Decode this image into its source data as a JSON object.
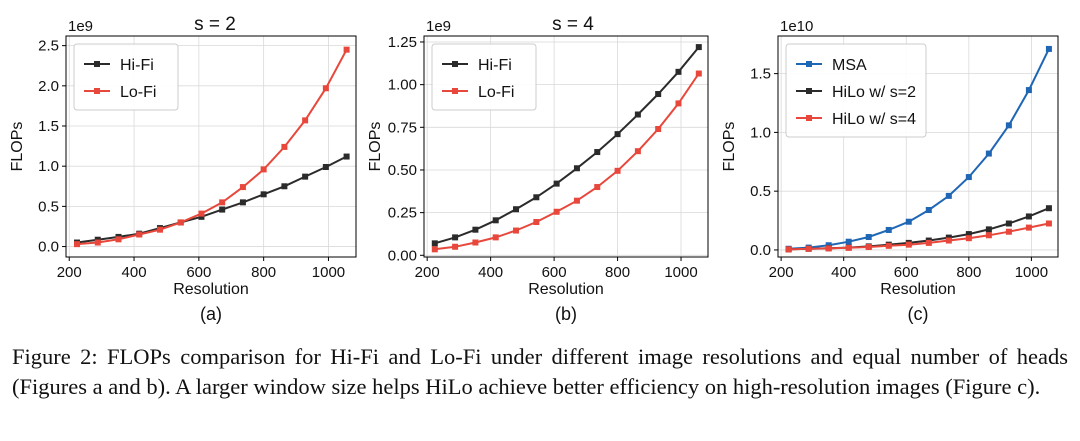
{
  "chart_data": [
    {
      "type": "line",
      "title": "s = 2",
      "sublabel": "(a)",
      "xlabel": "Resolution",
      "ylabel": "FLOPs",
      "y_scale_label": "1e9",
      "xlim": [
        190,
        1085
      ],
      "ylim": [
        -0.13,
        2.62
      ],
      "xticks": [
        200,
        400,
        600,
        800,
        1000
      ],
      "yticks": [
        0.0,
        0.5,
        1.0,
        1.5,
        2.0,
        2.5
      ],
      "ytick_labels": [
        "0.0",
        "0.5",
        "1.0",
        "1.5",
        "2.0",
        "2.5"
      ],
      "x": [
        224,
        288,
        352,
        416,
        480,
        544,
        608,
        672,
        736,
        800,
        864,
        928,
        992,
        1056
      ],
      "legend_position": "upper-left",
      "series": [
        {
          "name": "Hi-Fi",
          "color": "#2b2b2b",
          "values": [
            0.05,
            0.085,
            0.12,
            0.16,
            0.23,
            0.3,
            0.37,
            0.46,
            0.55,
            0.65,
            0.75,
            0.87,
            0.99,
            1.12
          ]
        },
        {
          "name": "Lo-Fi",
          "color": "#e8473b",
          "values": [
            0.03,
            0.05,
            0.09,
            0.15,
            0.21,
            0.3,
            0.41,
            0.55,
            0.74,
            0.96,
            1.24,
            1.57,
            1.97,
            2.45
          ]
        }
      ]
    },
    {
      "type": "line",
      "title": "s = 4",
      "sublabel": "(b)",
      "xlabel": "Resolution",
      "ylabel": "FLOPs",
      "y_scale_label": "1e9",
      "xlim": [
        190,
        1085
      ],
      "ylim": [
        -0.01,
        1.285
      ],
      "xticks": [
        200,
        400,
        600,
        800,
        1000
      ],
      "yticks": [
        0.0,
        0.25,
        0.5,
        0.75,
        1.0,
        1.25
      ],
      "ytick_labels": [
        "0.00",
        "0.25",
        "0.50",
        "0.75",
        "1.00",
        "1.25"
      ],
      "x": [
        224,
        288,
        352,
        416,
        480,
        544,
        608,
        672,
        736,
        800,
        864,
        928,
        992,
        1056
      ],
      "legend_position": "upper-left",
      "series": [
        {
          "name": "Hi-Fi",
          "color": "#2b2b2b",
          "values": [
            0.07,
            0.105,
            0.15,
            0.205,
            0.27,
            0.34,
            0.42,
            0.51,
            0.605,
            0.71,
            0.825,
            0.945,
            1.075,
            1.22
          ]
        },
        {
          "name": "Lo-Fi",
          "color": "#e8473b",
          "values": [
            0.035,
            0.05,
            0.075,
            0.105,
            0.145,
            0.195,
            0.255,
            0.32,
            0.4,
            0.495,
            0.61,
            0.74,
            0.89,
            1.065
          ]
        }
      ]
    },
    {
      "type": "line",
      "title": "",
      "sublabel": "(c)",
      "xlabel": "Resolution",
      "ylabel": "FLOPs",
      "y_scale_label": "1e10",
      "xlim": [
        190,
        1085
      ],
      "ylim": [
        -0.06,
        1.82
      ],
      "xticks": [
        200,
        400,
        600,
        800,
        1000
      ],
      "yticks": [
        0.0,
        0.5,
        1.0,
        1.5
      ],
      "ytick_labels": [
        "0.0",
        "0.5",
        "1.0",
        "1.5"
      ],
      "x": [
        224,
        288,
        352,
        416,
        480,
        544,
        608,
        672,
        736,
        800,
        864,
        928,
        992,
        1056
      ],
      "legend_position": "upper-left",
      "series": [
        {
          "name": "MSA",
          "color": "#1f67b5",
          "values": [
            0.01,
            0.02,
            0.04,
            0.07,
            0.11,
            0.17,
            0.24,
            0.34,
            0.46,
            0.62,
            0.82,
            1.06,
            1.36,
            1.71
          ]
        },
        {
          "name": "HiLo w/ s=2",
          "color": "#2b2b2b",
          "values": [
            0.005,
            0.01,
            0.015,
            0.02,
            0.03,
            0.045,
            0.06,
            0.08,
            0.105,
            0.135,
            0.175,
            0.225,
            0.285,
            0.355
          ]
        },
        {
          "name": "HiLo w/ s=4",
          "color": "#e8473b",
          "values": [
            0.005,
            0.01,
            0.013,
            0.018,
            0.025,
            0.035,
            0.045,
            0.06,
            0.08,
            0.1,
            0.125,
            0.155,
            0.19,
            0.225
          ]
        }
      ]
    }
  ],
  "caption": "Figure 2: FLOPs comparison for Hi-Fi and Lo-Fi under different image resolutions and equal number of heads (Figures a and b). A larger window size helps HiLo achieve better efficiency on high-resolution images (Figure c)."
}
